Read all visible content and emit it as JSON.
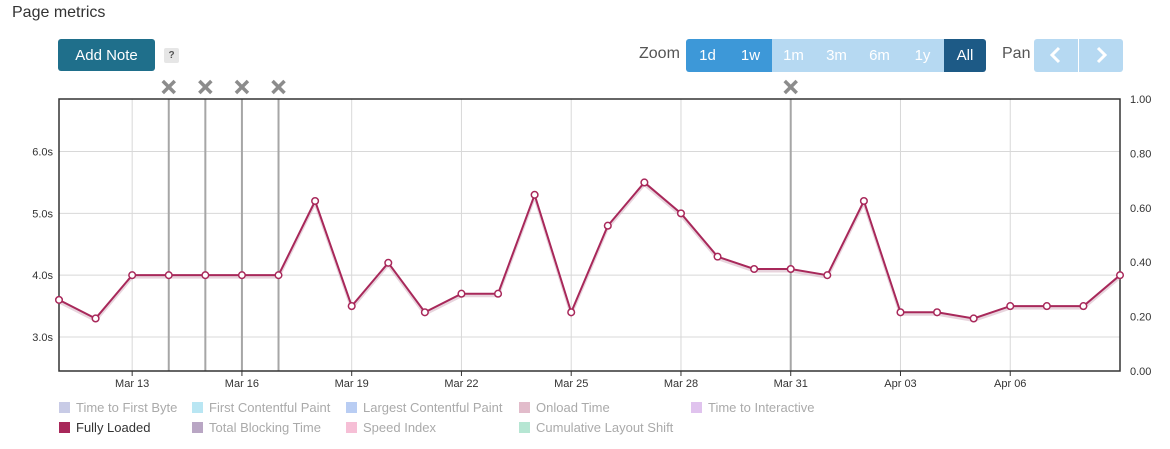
{
  "page": {
    "title": "Page metrics"
  },
  "toolbar": {
    "add_note_label": "Add Note",
    "help_label": "?",
    "zoom_label": "Zoom",
    "zoom_options": [
      "1d",
      "1w",
      "1m",
      "3m",
      "6m",
      "1y",
      "All"
    ],
    "zoom_enabled": [
      "1d",
      "1w"
    ],
    "zoom_selected": "All",
    "pan_label": "Pan",
    "pan_left_icon": "chevron-left-icon",
    "pan_right_icon": "chevron-right-icon"
  },
  "chart_data": {
    "type": "line",
    "title": "",
    "x": [
      "Mar 11",
      "Mar 12",
      "Mar 13",
      "Mar 14",
      "Mar 15",
      "Mar 16",
      "Mar 17",
      "Mar 18",
      "Mar 19",
      "Mar 20",
      "Mar 21",
      "Mar 22",
      "Mar 23",
      "Mar 24",
      "Mar 25",
      "Mar 26",
      "Mar 27",
      "Mar 28",
      "Mar 29",
      "Mar 30",
      "Mar 31",
      "Apr 01",
      "Apr 02",
      "Apr 03",
      "Apr 04",
      "Apr 05",
      "Apr 06",
      "Apr 07",
      "Apr 08",
      "Apr 09"
    ],
    "series": [
      {
        "name": "Fully Loaded",
        "color": "#a8285a",
        "values": [
          3.6,
          3.3,
          4.0,
          4.0,
          4.0,
          4.0,
          4.0,
          5.2,
          3.5,
          4.2,
          3.4,
          3.7,
          3.7,
          5.3,
          3.4,
          4.8,
          5.5,
          5.0,
          4.3,
          4.1,
          4.1,
          4.0,
          5.2,
          3.4,
          3.4,
          3.3,
          3.5,
          3.5,
          3.5,
          4.0
        ]
      }
    ],
    "x_tick_labels": [
      "Mar 13",
      "Mar 16",
      "Mar 19",
      "Mar 22",
      "Mar 25",
      "Mar 28",
      "Mar 31",
      "Apr 03",
      "Apr 06"
    ],
    "y_left_ticks": [
      "3.0s",
      "4.0s",
      "5.0s",
      "6.0s"
    ],
    "y_left_range": [
      2.45,
      6.85
    ],
    "y_right_ticks": [
      "0.00",
      "0.20",
      "0.40",
      "0.60",
      "0.80",
      "1.00"
    ],
    "y_right_range": [
      0,
      1
    ],
    "grid": true,
    "legend_position": "bottom",
    "notes": [
      "Mar 14",
      "Mar 15",
      "Mar 16",
      "Mar 17",
      "Mar 31"
    ],
    "note_marker_icon": "close-icon"
  },
  "legend": {
    "row1": [
      {
        "label": "Time to First Byte",
        "color": "#c8cbe6",
        "active": false
      },
      {
        "label": "First Contentful Paint",
        "color": "#b9e6f3",
        "active": false
      },
      {
        "label": "Largest Contentful Paint",
        "color": "#b9cdf3",
        "active": false
      },
      {
        "label": "Onload Time",
        "color": "#e2bccb",
        "active": false
      },
      {
        "label": "Time to Interactive",
        "color": "#e0c3ee",
        "active": false
      }
    ],
    "row2": [
      {
        "label": "Fully Loaded",
        "color": "#a8285a",
        "active": true
      },
      {
        "label": "Total Blocking Time",
        "color": "#b9a6c4",
        "active": false
      },
      {
        "label": "Speed Index",
        "color": "#f6bfd6",
        "active": false
      },
      {
        "label": "Cumulative Layout Shift",
        "color": "#b6e6d3",
        "active": false
      }
    ]
  }
}
